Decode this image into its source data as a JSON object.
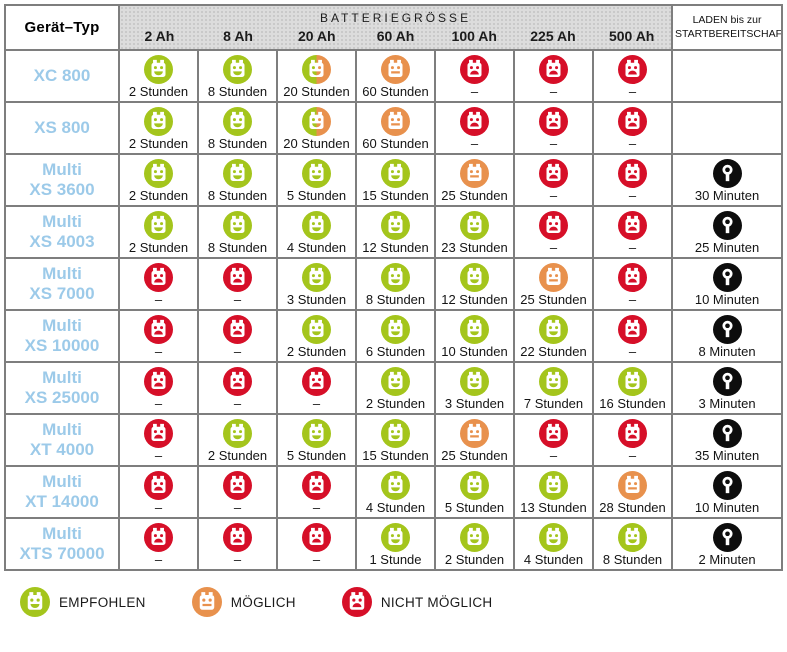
{
  "chart_data": {
    "type": "table",
    "header": {
      "device_col": "Gerät–Typ",
      "battery_group": "BATTERIEGRÖSSE",
      "battery_sizes": [
        "2 Ah",
        "8 Ah",
        "20 Ah",
        "60 Ah",
        "100 Ah",
        "225 Ah",
        "500 Ah"
      ],
      "laden_line1": "LADEN bis zur",
      "laden_line2": "STARTBEREITSCHAFT"
    },
    "status_meaning": {
      "empfohlen": "EMPFOHLEN",
      "moeglich": "MÖGLICH",
      "nicht_moeglich": "NICHT MÖGLICH",
      "empfohlen_moeglich": "EMPFOHLEN/MÖGLICH"
    },
    "rows": [
      {
        "device_lines": [
          "XC 800"
        ],
        "cells": [
          {
            "status": "empfohlen",
            "label": "2 Stunden"
          },
          {
            "status": "empfohlen",
            "label": "8 Stunden"
          },
          {
            "status": "empfohlen_moeglich",
            "label": "20 Stunden"
          },
          {
            "status": "moeglich",
            "label": "60 Stunden"
          },
          {
            "status": "nicht_moeglich",
            "label": "–"
          },
          {
            "status": "nicht_moeglich",
            "label": "–"
          },
          {
            "status": "nicht_moeglich",
            "label": "–"
          }
        ],
        "laden": ""
      },
      {
        "device_lines": [
          "XS 800"
        ],
        "cells": [
          {
            "status": "empfohlen",
            "label": "2 Stunden"
          },
          {
            "status": "empfohlen",
            "label": "8 Stunden"
          },
          {
            "status": "empfohlen_moeglich",
            "label": "20 Stunden"
          },
          {
            "status": "moeglich",
            "label": "60 Stunden"
          },
          {
            "status": "nicht_moeglich",
            "label": "–"
          },
          {
            "status": "nicht_moeglich",
            "label": "–"
          },
          {
            "status": "nicht_moeglich",
            "label": "–"
          }
        ],
        "laden": ""
      },
      {
        "device_lines": [
          "Multi",
          "XS 3600"
        ],
        "cells": [
          {
            "status": "empfohlen",
            "label": "2 Stunden"
          },
          {
            "status": "empfohlen",
            "label": "8 Stunden"
          },
          {
            "status": "empfohlen",
            "label": "5 Stunden"
          },
          {
            "status": "empfohlen",
            "label": "15 Stunden"
          },
          {
            "status": "moeglich",
            "label": "25 Stunden"
          },
          {
            "status": "nicht_moeglich",
            "label": "–"
          },
          {
            "status": "nicht_moeglich",
            "label": "–"
          }
        ],
        "laden": "30 Minuten"
      },
      {
        "device_lines": [
          "Multi",
          "XS 4003"
        ],
        "cells": [
          {
            "status": "empfohlen",
            "label": "2 Stunden"
          },
          {
            "status": "empfohlen",
            "label": "8 Stunden"
          },
          {
            "status": "empfohlen",
            "label": "4 Stunden"
          },
          {
            "status": "empfohlen",
            "label": "12 Stunden"
          },
          {
            "status": "empfohlen",
            "label": "23 Stunden"
          },
          {
            "status": "nicht_moeglich",
            "label": "–"
          },
          {
            "status": "nicht_moeglich",
            "label": "–"
          }
        ],
        "laden": "25 Minuten"
      },
      {
        "device_lines": [
          "Multi",
          "XS 7000"
        ],
        "cells": [
          {
            "status": "nicht_moeglich",
            "label": "–"
          },
          {
            "status": "nicht_moeglich",
            "label": "–"
          },
          {
            "status": "empfohlen",
            "label": "3 Stunden"
          },
          {
            "status": "empfohlen",
            "label": "8 Stunden"
          },
          {
            "status": "empfohlen",
            "label": "12 Stunden"
          },
          {
            "status": "moeglich",
            "label": "25 Stunden"
          },
          {
            "status": "nicht_moeglich",
            "label": "–"
          }
        ],
        "laden": "10 Minuten"
      },
      {
        "device_lines": [
          "Multi",
          "XS 10000"
        ],
        "cells": [
          {
            "status": "nicht_moeglich",
            "label": "–"
          },
          {
            "status": "nicht_moeglich",
            "label": "–"
          },
          {
            "status": "empfohlen",
            "label": "2 Stunden"
          },
          {
            "status": "empfohlen",
            "label": "6 Stunden"
          },
          {
            "status": "empfohlen",
            "label": "10 Stunden"
          },
          {
            "status": "empfohlen",
            "label": "22 Stunden"
          },
          {
            "status": "nicht_moeglich",
            "label": "–"
          }
        ],
        "laden": "8 Minuten"
      },
      {
        "device_lines": [
          "Multi",
          "XS 25000"
        ],
        "cells": [
          {
            "status": "nicht_moeglich",
            "label": "–"
          },
          {
            "status": "nicht_moeglich",
            "label": "–"
          },
          {
            "status": "nicht_moeglich",
            "label": "–"
          },
          {
            "status": "empfohlen",
            "label": "2 Stunden"
          },
          {
            "status": "empfohlen",
            "label": "3 Stunden"
          },
          {
            "status": "empfohlen",
            "label": "7 Stunden"
          },
          {
            "status": "empfohlen",
            "label": "16 Stunden"
          }
        ],
        "laden": "3 Minuten"
      },
      {
        "device_lines": [
          "Multi",
          "XT 4000"
        ],
        "cells": [
          {
            "status": "nicht_moeglich",
            "label": "–"
          },
          {
            "status": "empfohlen",
            "label": "2 Stunden"
          },
          {
            "status": "empfohlen",
            "label": "5 Stunden"
          },
          {
            "status": "empfohlen",
            "label": "15 Stunden"
          },
          {
            "status": "moeglich",
            "label": "25 Stunden"
          },
          {
            "status": "nicht_moeglich",
            "label": "–"
          },
          {
            "status": "nicht_moeglich",
            "label": "–"
          }
        ],
        "laden": "35 Minuten"
      },
      {
        "device_lines": [
          "Multi",
          "XT 14000"
        ],
        "cells": [
          {
            "status": "nicht_moeglich",
            "label": "–"
          },
          {
            "status": "nicht_moeglich",
            "label": "–"
          },
          {
            "status": "nicht_moeglich",
            "label": "–"
          },
          {
            "status": "empfohlen",
            "label": "4 Stunden"
          },
          {
            "status": "empfohlen",
            "label": "5 Stunden"
          },
          {
            "status": "empfohlen",
            "label": "13 Stunden"
          },
          {
            "status": "moeglich",
            "label": "28 Stunden"
          }
        ],
        "laden": "10 Minuten"
      },
      {
        "device_lines": [
          "Multi",
          "XTS 70000"
        ],
        "cells": [
          {
            "status": "nicht_moeglich",
            "label": "–"
          },
          {
            "status": "nicht_moeglich",
            "label": "–"
          },
          {
            "status": "nicht_moeglich",
            "label": "–"
          },
          {
            "status": "empfohlen",
            "label": "1 Stunde"
          },
          {
            "status": "empfohlen",
            "label": "2 Stunden"
          },
          {
            "status": "empfohlen",
            "label": "4 Stunden"
          },
          {
            "status": "empfohlen",
            "label": "8 Stunden"
          }
        ],
        "laden": "2 Minuten"
      }
    ]
  },
  "legend": [
    {
      "status": "empfohlen",
      "label": "EMPFOHLEN"
    },
    {
      "status": "moeglich",
      "label": "MÖGLICH"
    },
    {
      "status": "nicht_moeglich",
      "label": "NICHT MÖGLICH"
    }
  ],
  "colors": {
    "empfohlen_green": "#a4c51c",
    "moeglich_orange": "#e8914d",
    "nicht_moeglich_red": "#d60f28",
    "device_blue": "#9ccae9",
    "lock_black": "#0d0d0d",
    "grid_border": "#7e7e7e",
    "header_gray": "#dcdcdc"
  }
}
